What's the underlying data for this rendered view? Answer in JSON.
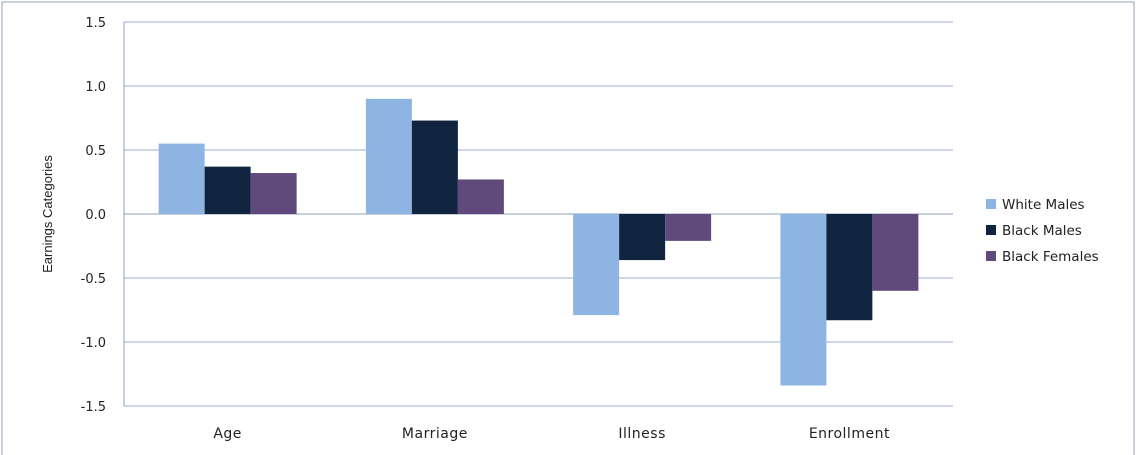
{
  "chart_data": {
    "type": "bar",
    "ylabel": "Earnings Categories",
    "ylim": [
      -1.5,
      1.5
    ],
    "yticks": [
      "1.5",
      "1.0",
      "0.5",
      "0.0",
      "-0.5",
      "-1.0",
      "-1.5"
    ],
    "ytick_values": [
      1.5,
      1.0,
      0.5,
      0.0,
      -0.5,
      -1.0,
      -1.5
    ],
    "grid": true,
    "legend_position": "right",
    "categories": [
      "Age",
      "Marriage",
      "Illness",
      "Enrollment"
    ],
    "series": [
      {
        "name": "White Males",
        "color": "#8EB4E3",
        "values": [
          0.55,
          0.9,
          -0.79,
          -1.34
        ]
      },
      {
        "name": "Black Males",
        "color": "#10243F",
        "values": [
          0.37,
          0.73,
          -0.36,
          -0.83
        ]
      },
      {
        "name": "Black Females",
        "color": "#604A7B",
        "values": [
          0.32,
          0.27,
          -0.21,
          -0.6
        ]
      }
    ]
  }
}
